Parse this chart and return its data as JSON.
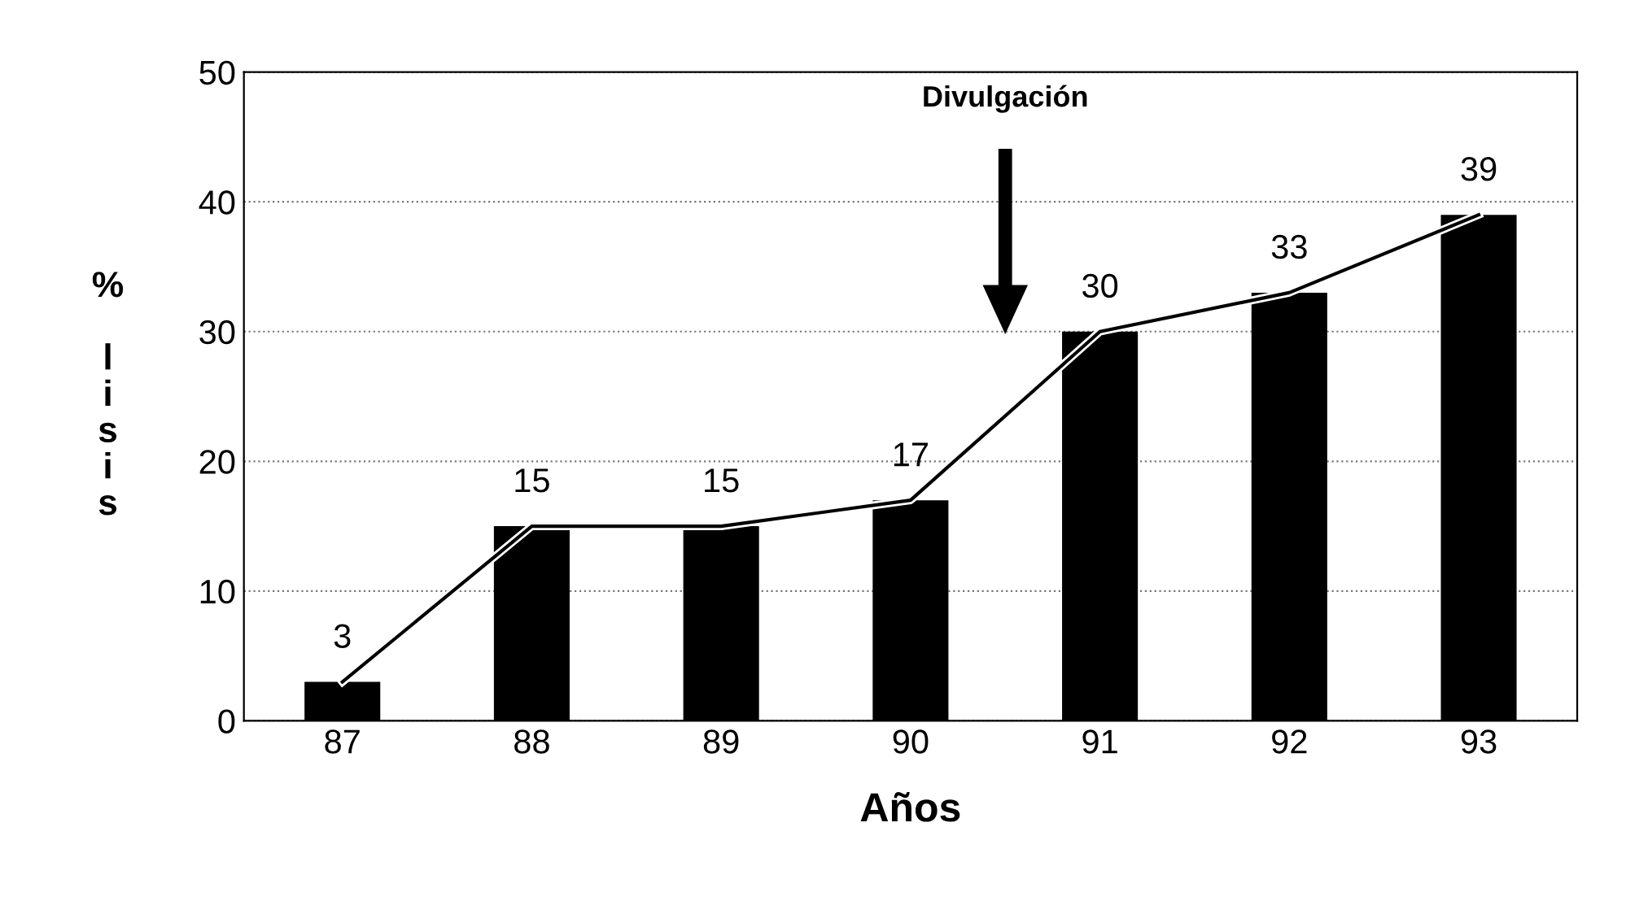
{
  "chart_data": {
    "type": "bar",
    "xlabel": "Años",
    "ylabel": "% lisis",
    "categories": [
      "87",
      "88",
      "89",
      "90",
      "91",
      "92",
      "93"
    ],
    "series": [
      {
        "color": "#000000",
        "values": [
          3,
          15,
          15,
          17,
          30,
          33,
          39
        ],
        "value_labels": [
          "3",
          "15",
          "15",
          "17",
          "30",
          "33",
          "39"
        ]
      },
      {
        "type": "line",
        "color": "#000000",
        "values": [
          3,
          15,
          15,
          17,
          30,
          33,
          39
        ]
      }
    ],
    "annotations": [
      "Divulgación"
    ],
    "ylim": [
      0,
      50
    ],
    "yticks": [
      0,
      10,
      20,
      30,
      40,
      50
    ],
    "grid": "y",
    "marker": "none",
    "line_style": "solid"
  }
}
